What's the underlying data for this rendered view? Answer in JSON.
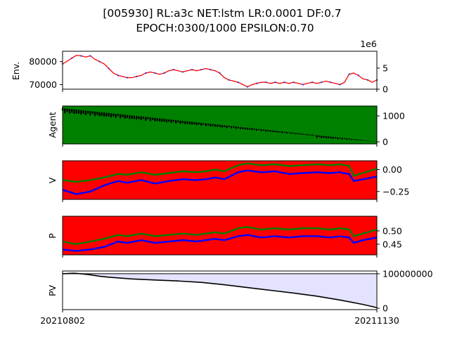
{
  "figure": {
    "title_line1": "[005930] RL:a3c NET:lstm LR:0.0001 DF:0.7",
    "title_line2": "EPOCH:0300/1000 EPSILON:0.70"
  },
  "colors": {
    "price": "#ff0000",
    "dots": "#3b3bd6",
    "agent_fill": "#008000",
    "agent_line": "#000000",
    "v_bg": "#ff0000",
    "v_green": "#008000",
    "v_blue": "#0000ff",
    "pv_fill": "#e3e3ff",
    "pv_line": "#000000"
  },
  "chart_data": [
    {
      "type": "line",
      "panel": "env",
      "ylabel": "Env.",
      "offset_label": "1e6",
      "x_range": [
        "20210802",
        "20211130"
      ],
      "ylim_left": [
        68000,
        84500
      ],
      "yticks_left": [
        {
          "value": 70000,
          "label": "70000"
        },
        {
          "value": 80000,
          "label": "80000"
        }
      ],
      "ylim_right": [
        0,
        9
      ],
      "yticks_right": [
        {
          "value": 0,
          "label": "0"
        },
        {
          "value": 5,
          "label": "5"
        }
      ],
      "price": [
        [
          0,
          79000
        ],
        [
          2,
          80200
        ],
        [
          4,
          81500
        ],
        [
          6,
          82700
        ],
        [
          8,
          82500
        ],
        [
          10,
          82000
        ],
        [
          12,
          82500
        ],
        [
          14,
          81000
        ],
        [
          16,
          80000
        ],
        [
          18,
          79000
        ],
        [
          20,
          77000
        ],
        [
          22,
          75000
        ],
        [
          24,
          74000
        ],
        [
          26,
          73500
        ],
        [
          28,
          73000
        ],
        [
          30,
          73000
        ],
        [
          32,
          73500
        ],
        [
          34,
          74000
        ],
        [
          36,
          75000
        ],
        [
          38,
          75500
        ],
        [
          40,
          75000
        ],
        [
          42,
          74500
        ],
        [
          44,
          75000
        ],
        [
          46,
          76000
        ],
        [
          48,
          76500
        ],
        [
          50,
          76000
        ],
        [
          52,
          75500
        ],
        [
          54,
          76000
        ],
        [
          56,
          76500
        ],
        [
          58,
          76000
        ],
        [
          60,
          76500
        ],
        [
          62,
          77000
        ],
        [
          64,
          76500
        ],
        [
          66,
          76000
        ],
        [
          68,
          75000
        ],
        [
          70,
          73000
        ],
        [
          72,
          72000
        ],
        [
          74,
          71500
        ],
        [
          76,
          71000
        ],
        [
          78,
          70000
        ],
        [
          80,
          69000
        ],
        [
          82,
          70000
        ],
        [
          84,
          70500
        ],
        [
          86,
          71000
        ],
        [
          88,
          71000
        ],
        [
          90,
          70500
        ],
        [
          92,
          71000
        ],
        [
          94,
          70500
        ],
        [
          96,
          71000
        ],
        [
          98,
          70500
        ],
        [
          100,
          71000
        ],
        [
          102,
          70500
        ],
        [
          104,
          70000
        ],
        [
          106,
          70500
        ],
        [
          108,
          71000
        ],
        [
          110,
          70500
        ],
        [
          112,
          71000
        ],
        [
          114,
          71500
        ],
        [
          116,
          71000
        ],
        [
          118,
          70500
        ],
        [
          120,
          70000
        ],
        [
          122,
          71000
        ],
        [
          124,
          74500
        ],
        [
          126,
          75000
        ],
        [
          128,
          74000
        ],
        [
          130,
          72500
        ],
        [
          132,
          72000
        ],
        [
          134,
          71000
        ],
        [
          136,
          72000
        ]
      ]
    },
    {
      "type": "area",
      "panel": "agent",
      "ylabel": "Agent",
      "ylim": [
        -80,
        1380
      ],
      "yticks_right": [
        {
          "value": 0,
          "label": "0"
        },
        {
          "value": 1000,
          "label": "1000"
        }
      ],
      "x_count": 137,
      "start": 1300,
      "end": 10
    },
    {
      "type": "line",
      "panel": "v",
      "ylabel": "V",
      "ylim": [
        -0.34,
        0.1
      ],
      "yticks_right": [
        {
          "value": -0.25,
          "label": "−0.25"
        },
        {
          "value": 0.0,
          "label": "0.00"
        }
      ],
      "series": [
        {
          "color": "green",
          "values": [
            [
              0,
              -0.12
            ],
            [
              6,
              -0.14
            ],
            [
              12,
              -0.12
            ],
            [
              18,
              -0.09
            ],
            [
              24,
              -0.05
            ],
            [
              28,
              -0.06
            ],
            [
              34,
              -0.03
            ],
            [
              40,
              -0.06
            ],
            [
              46,
              -0.04
            ],
            [
              52,
              -0.02
            ],
            [
              58,
              -0.03
            ],
            [
              62,
              -0.02
            ],
            [
              66,
              0.0
            ],
            [
              70,
              -0.02
            ],
            [
              76,
              0.05
            ],
            [
              80,
              0.07
            ],
            [
              86,
              0.05
            ],
            [
              92,
              0.06
            ],
            [
              98,
              0.04
            ],
            [
              104,
              0.05
            ],
            [
              110,
              0.06
            ],
            [
              116,
              0.05
            ],
            [
              120,
              0.06
            ],
            [
              124,
              0.04
            ],
            [
              126,
              -0.07
            ],
            [
              130,
              -0.04
            ],
            [
              136,
              0.01
            ]
          ]
        },
        {
          "color": "blue",
          "values": [
            [
              0,
              -0.23
            ],
            [
              6,
              -0.28
            ],
            [
              12,
              -0.25
            ],
            [
              18,
              -0.18
            ],
            [
              24,
              -0.13
            ],
            [
              28,
              -0.15
            ],
            [
              34,
              -0.12
            ],
            [
              40,
              -0.16
            ],
            [
              46,
              -0.13
            ],
            [
              52,
              -0.11
            ],
            [
              58,
              -0.12
            ],
            [
              62,
              -0.11
            ],
            [
              66,
              -0.09
            ],
            [
              70,
              -0.11
            ],
            [
              76,
              -0.03
            ],
            [
              80,
              -0.01
            ],
            [
              86,
              -0.03
            ],
            [
              92,
              -0.02
            ],
            [
              98,
              -0.05
            ],
            [
              104,
              -0.04
            ],
            [
              110,
              -0.03
            ],
            [
              116,
              -0.04
            ],
            [
              120,
              -0.03
            ],
            [
              124,
              -0.05
            ],
            [
              126,
              -0.13
            ],
            [
              130,
              -0.11
            ],
            [
              136,
              -0.08
            ]
          ]
        }
      ]
    },
    {
      "type": "line",
      "panel": "p",
      "ylabel": "P",
      "ylim": [
        0.41,
        0.555
      ],
      "yticks_right": [
        {
          "value": 0.45,
          "label": "0.45"
        },
        {
          "value": 0.5,
          "label": "0.50"
        }
      ],
      "series": [
        {
          "color": "green",
          "values": [
            [
              0,
              0.46
            ],
            [
              6,
              0.45
            ],
            [
              12,
              0.46
            ],
            [
              18,
              0.47
            ],
            [
              24,
              0.485
            ],
            [
              28,
              0.48
            ],
            [
              34,
              0.49
            ],
            [
              40,
              0.48
            ],
            [
              46,
              0.485
            ],
            [
              52,
              0.49
            ],
            [
              58,
              0.485
            ],
            [
              62,
              0.49
            ],
            [
              66,
              0.495
            ],
            [
              70,
              0.49
            ],
            [
              76,
              0.51
            ],
            [
              80,
              0.515
            ],
            [
              86,
              0.505
            ],
            [
              92,
              0.51
            ],
            [
              98,
              0.505
            ],
            [
              104,
              0.51
            ],
            [
              110,
              0.51
            ],
            [
              116,
              0.505
            ],
            [
              120,
              0.51
            ],
            [
              124,
              0.505
            ],
            [
              126,
              0.48
            ],
            [
              130,
              0.49
            ],
            [
              136,
              0.505
            ]
          ]
        },
        {
          "color": "blue",
          "values": [
            [
              0,
              0.43
            ],
            [
              6,
              0.425
            ],
            [
              12,
              0.43
            ],
            [
              18,
              0.44
            ],
            [
              24,
              0.46
            ],
            [
              28,
              0.455
            ],
            [
              34,
              0.465
            ],
            [
              40,
              0.455
            ],
            [
              46,
              0.46
            ],
            [
              52,
              0.465
            ],
            [
              58,
              0.46
            ],
            [
              62,
              0.465
            ],
            [
              66,
              0.47
            ],
            [
              70,
              0.465
            ],
            [
              76,
              0.48
            ],
            [
              80,
              0.485
            ],
            [
              86,
              0.475
            ],
            [
              92,
              0.48
            ],
            [
              98,
              0.475
            ],
            [
              104,
              0.48
            ],
            [
              110,
              0.48
            ],
            [
              116,
              0.475
            ],
            [
              120,
              0.48
            ],
            [
              124,
              0.475
            ],
            [
              126,
              0.455
            ],
            [
              130,
              0.465
            ],
            [
              136,
              0.475
            ]
          ]
        }
      ]
    },
    {
      "type": "area",
      "panel": "pv",
      "ylabel": "PV",
      "ylim": [
        -4000000,
        108000000
      ],
      "yticks_right": [
        {
          "value": 0,
          "label": "0"
        },
        {
          "value": 100000000,
          "label": "100000000"
        }
      ],
      "x_ticks": [
        {
          "index": 0,
          "label": "20210802"
        },
        {
          "index": 136,
          "label": "20211130"
        }
      ],
      "reference": 100000000,
      "values": [
        [
          0,
          100000000
        ],
        [
          3,
          101000000
        ],
        [
          5,
          101500000
        ],
        [
          8,
          100000000
        ],
        [
          12,
          97000000
        ],
        [
          16,
          93000000
        ],
        [
          20,
          90000000
        ],
        [
          30,
          85000000
        ],
        [
          40,
          82000000
        ],
        [
          50,
          79000000
        ],
        [
          60,
          75000000
        ],
        [
          70,
          68000000
        ],
        [
          80,
          60000000
        ],
        [
          90,
          52000000
        ],
        [
          100,
          44000000
        ],
        [
          110,
          35000000
        ],
        [
          120,
          24000000
        ],
        [
          130,
          11000000
        ],
        [
          136,
          2000000
        ]
      ]
    }
  ]
}
